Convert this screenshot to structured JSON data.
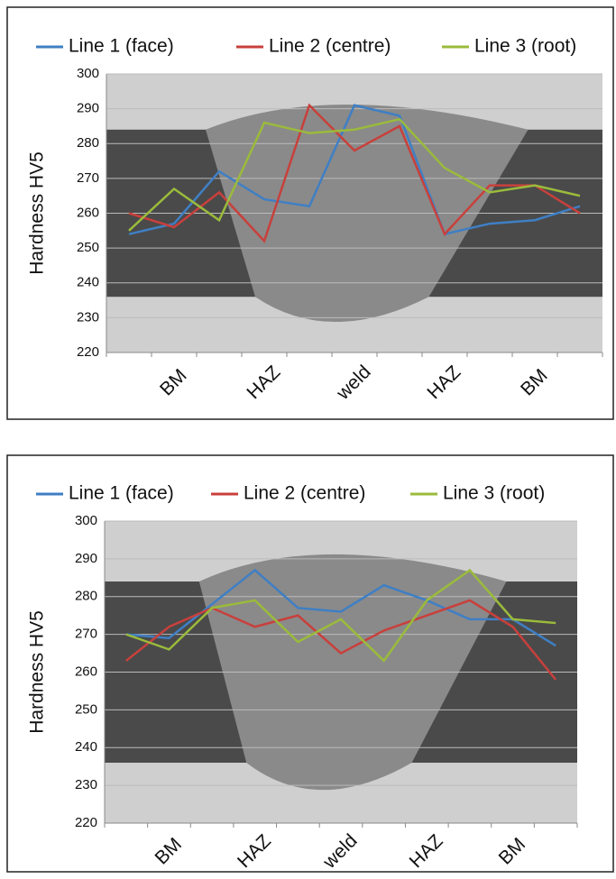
{
  "chart_data": [
    {
      "type": "line",
      "y_label": "Hardness HV5",
      "categories": [
        null,
        "BM",
        null,
        "HAZ",
        null,
        "weld",
        null,
        "HAZ",
        null,
        "BM",
        null
      ],
      "series": [
        {
          "name": "Line 1 (face)",
          "color": "#3f7fc4",
          "values": [
            254,
            257,
            272,
            264,
            262,
            291,
            288,
            254,
            257,
            258,
            262
          ]
        },
        {
          "name": "Line 2 (centre)",
          "color": "#c8403c",
          "values": [
            260,
            256,
            266,
            252,
            291,
            278,
            285,
            254,
            268,
            268,
            260
          ]
        },
        {
          "name": "Line 3 (root)",
          "color": "#9bbb3b",
          "values": [
            255,
            267,
            258,
            286,
            283,
            284,
            287,
            273,
            266,
            268,
            265
          ]
        }
      ],
      "ylim": [
        220,
        300
      ],
      "yticks": [
        220,
        230,
        240,
        250,
        260,
        270,
        280,
        290,
        300
      ],
      "grid": true,
      "legend": "top"
    },
    {
      "type": "line",
      "y_label": "Hardness HV5",
      "categories": [
        null,
        "BM",
        null,
        "HAZ",
        null,
        "weld",
        null,
        "HAZ",
        null,
        "BM",
        null
      ],
      "series": [
        {
          "name": "Line 1 (face)",
          "color": "#3f7fc4",
          "values": [
            270,
            269,
            278,
            287,
            277,
            276,
            283,
            279,
            274,
            274,
            267
          ]
        },
        {
          "name": "Line 2 (centre)",
          "color": "#c8403c",
          "values": [
            263,
            272,
            277,
            272,
            275,
            265,
            271,
            275,
            279,
            272,
            258
          ]
        },
        {
          "name": "Line 3 (root)",
          "color": "#9bbb3b",
          "values": [
            270,
            266,
            277,
            279,
            268,
            274,
            263,
            279,
            287,
            274,
            273
          ]
        }
      ],
      "ylim": [
        220,
        300
      ],
      "yticks": [
        220,
        230,
        240,
        250,
        260,
        270,
        280,
        290,
        300
      ],
      "grid": true,
      "legend": "top"
    }
  ]
}
